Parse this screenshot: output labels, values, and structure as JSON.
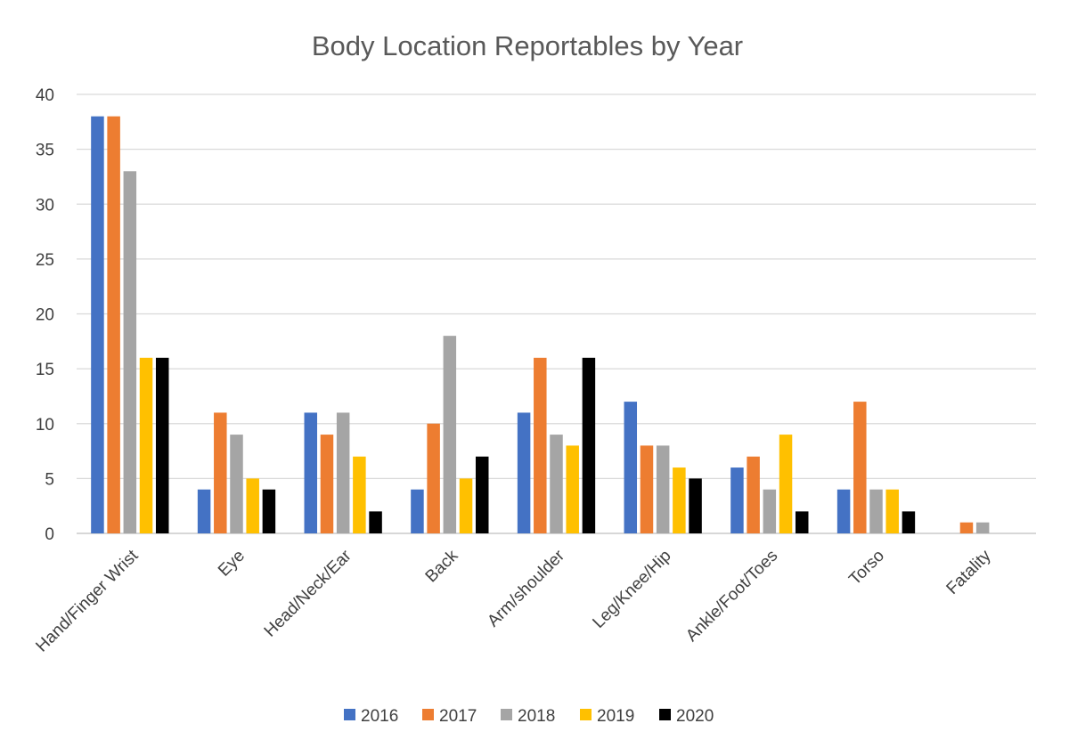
{
  "chart_data": {
    "type": "bar",
    "title": "Body Location Reportables by Year",
    "xlabel": "",
    "ylabel": "",
    "ylim": [
      0,
      40
    ],
    "yticks": [
      0,
      5,
      10,
      15,
      20,
      25,
      30,
      35,
      40
    ],
    "grid": true,
    "legend_position": "bottom",
    "categories": [
      "Hand/Finger Wrist",
      "Eye",
      "Head/Neck/Ear",
      "Back",
      "Arm/shoulder",
      "Leg/Knee/Hip",
      "Ankle/Foot/Toes",
      "Torso",
      "Fatality"
    ],
    "series": [
      {
        "name": "2016",
        "color": "#4472C4",
        "values": [
          38,
          4,
          11,
          4,
          11,
          12,
          6,
          4,
          0
        ]
      },
      {
        "name": "2017",
        "color": "#ED7D31",
        "values": [
          38,
          11,
          9,
          10,
          16,
          8,
          7,
          12,
          1
        ]
      },
      {
        "name": "2018",
        "color": "#A5A5A5",
        "values": [
          33,
          9,
          11,
          18,
          9,
          8,
          4,
          4,
          1
        ]
      },
      {
        "name": "2019",
        "color": "#FFC000",
        "values": [
          16,
          5,
          7,
          5,
          8,
          6,
          9,
          4,
          0
        ]
      },
      {
        "name": "2020",
        "color": "#000000",
        "values": [
          16,
          4,
          2,
          7,
          16,
          5,
          2,
          2,
          0
        ]
      }
    ]
  }
}
